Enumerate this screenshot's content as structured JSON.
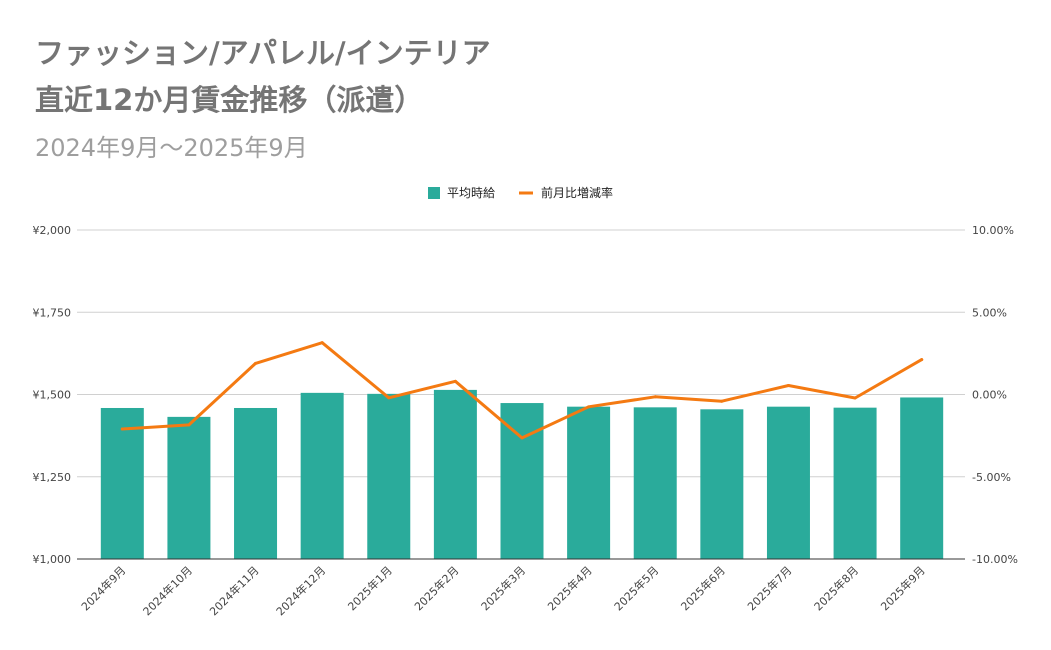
{
  "chart_data": {
    "type": "bar",
    "title": "ファッション/アパレル/インテリア",
    "title_line2": "直近12か月賃金推移（派遣）",
    "subtitle": "2024年9月～2025年9月",
    "legend_position": "top-center",
    "grid": true,
    "categories": [
      "2024年9月",
      "2024年10月",
      "2024年11月",
      "2024年12月",
      "2025年1月",
      "2025年2月",
      "2025年3月",
      "2025年4月",
      "2025年5月",
      "2025年6月",
      "2025年7月",
      "2025年8月",
      "2025年9月"
    ],
    "series": [
      {
        "name": "平均時給",
        "type": "bar",
        "axis": "left",
        "color": "#2aab9b",
        "values": [
          1459,
          1432,
          1459,
          1505,
          1502,
          1514,
          1474,
          1463,
          1461,
          1455,
          1463,
          1460,
          1491
        ]
      },
      {
        "name": "前月比増減率",
        "type": "line",
        "axis": "right",
        "color": "#f47a12",
        "values": [
          -2.1,
          -1.85,
          1.89,
          3.15,
          -0.2,
          0.8,
          -2.64,
          -0.75,
          -0.14,
          -0.41,
          0.55,
          -0.21,
          2.12
        ]
      }
    ],
    "y_left": {
      "label": "",
      "min": 1000,
      "max": 2000,
      "ticks": [
        1000,
        1250,
        1500,
        1750,
        2000
      ],
      "tick_labels": [
        "¥1,000",
        "¥1,250",
        "¥1,500",
        "¥1,750",
        "¥2,000"
      ]
    },
    "y_right": {
      "label": "",
      "min": -10,
      "max": 10,
      "ticks": [
        -10,
        -5,
        0,
        5,
        10
      ],
      "tick_labels": [
        "-10.00%",
        "-5.00%",
        "0.00%",
        "5.00%",
        "10.00%"
      ]
    },
    "xlabel": ""
  }
}
